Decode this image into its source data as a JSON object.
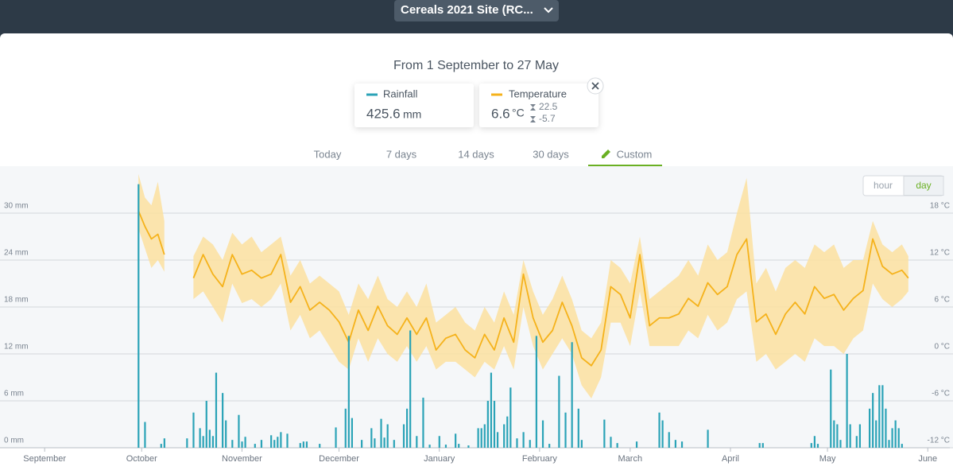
{
  "header": {
    "site": "Cereals 2021 Site (RC..."
  },
  "range_title": "From 1 September to 27 May",
  "summary": {
    "rainfall": {
      "value": 425.6,
      "unit": "mm"
    },
    "temperature": {
      "value": 6.6,
      "unit": "°C",
      "max": 22.5,
      "min": -5.7
    }
  },
  "tabs": [
    "Today",
    "7 days",
    "14 days",
    "30 days",
    "Custom"
  ],
  "active_tab": 4,
  "resolutions": [
    "hour",
    "day"
  ],
  "active_resolution": 1,
  "chart_data": {
    "type": "bar-line",
    "xlim": [
      -13.8,
      280.8
    ],
    "xticks": [
      {
        "value": 0,
        "label": "September"
      },
      {
        "value": 30,
        "label": "October"
      },
      {
        "value": 61,
        "label": "November"
      },
      {
        "value": 91,
        "label": "December"
      },
      {
        "value": 122,
        "label": "January"
      },
      {
        "value": 153,
        "label": "February"
      },
      {
        "value": 181,
        "label": "March"
      },
      {
        "value": 212,
        "label": "April"
      },
      {
        "value": 242,
        "label": "May"
      },
      {
        "value": 273,
        "label": "June"
      }
    ],
    "ylim": [
      0,
      36
    ],
    "yticks": [
      {
        "value": 0,
        "label": "0 mm"
      },
      {
        "value": 6,
        "label": "6 mm"
      },
      {
        "value": 12,
        "label": "12 mm"
      },
      {
        "value": 18,
        "label": "18 mm"
      },
      {
        "value": 24,
        "label": "24 mm"
      },
      {
        "value": 30,
        "label": "30 mm"
      }
    ],
    "y2lim": [
      -12,
      24
    ],
    "y2ticks": [
      {
        "value": -12,
        "label": "-12 °C"
      },
      {
        "value": -6,
        "label": "-6 °C"
      },
      {
        "value": 0,
        "label": "0 °C"
      },
      {
        "value": 6,
        "label": "6 °C"
      },
      {
        "value": 12,
        "label": "12 °C"
      },
      {
        "value": 18,
        "label": "18 °C"
      }
    ],
    "grid": true,
    "series": [
      {
        "name": "Rainfall",
        "color": "#2ba3b7",
        "type": "bar",
        "x": [
          29,
          31,
          36,
          37,
          44,
          46,
          48,
          49,
          50,
          51,
          52,
          53,
          55,
          56,
          58,
          60,
          61,
          62,
          65,
          67,
          70,
          71,
          72,
          73,
          75,
          79,
          80,
          81,
          85,
          90,
          93,
          94,
          95,
          98,
          101,
          102,
          104,
          105,
          106,
          108,
          111,
          112,
          113,
          115,
          117,
          119,
          122,
          124,
          127,
          128,
          131,
          134,
          135,
          136,
          137,
          138,
          139,
          140,
          142,
          143,
          144,
          146,
          148,
          150,
          152,
          154,
          156,
          159,
          161,
          163,
          165,
          166,
          173,
          175,
          177,
          183,
          190,
          191,
          193,
          195,
          197,
          205,
          221,
          222,
          237,
          238,
          239,
          243,
          244,
          245,
          246,
          248,
          249,
          251,
          252,
          255,
          256,
          257,
          258,
          259,
          260,
          261,
          262,
          263,
          264,
          265
        ],
        "values": [
          33.7,
          3.3,
          0.5,
          1.2,
          1.2,
          4.5,
          2.5,
          1.5,
          6,
          2.3,
          1.5,
          9.6,
          7,
          3.5,
          1.0,
          4.2,
          0.8,
          1.4,
          0.5,
          1.0,
          1.6,
          1.0,
          1.4,
          2.0,
          1.8,
          0.6,
          0.8,
          0.8,
          0.5,
          2.6,
          5.0,
          14.3,
          3.8,
          1.0,
          2.5,
          1.2,
          3.7,
          1.3,
          3.0,
          1.0,
          3.0,
          5.0,
          15.0,
          1.5,
          6.4,
          0.4,
          1.5,
          0.4,
          1.8,
          0.5,
          0.3,
          2.5,
          2.5,
          3.0,
          6.0,
          9.6,
          6.0,
          2.0,
          3.0,
          4.0,
          7.7,
          1.2,
          2.0,
          1.0,
          14.3,
          3.5,
          0.5,
          9.2,
          4.5,
          13.5,
          5.0,
          1.0,
          3.6,
          1.4,
          0.6,
          0.8,
          4.5,
          3.5,
          2.0,
          1.0,
          0.8,
          2.3,
          0.6,
          0.6,
          0.6,
          1.5,
          0.5,
          10.0,
          3.5,
          3.0,
          1.0,
          12.0,
          3.0,
          1.5,
          3.0,
          5.0,
          7.0,
          3.5,
          8.0,
          8.0,
          5.0,
          1.0,
          2.5,
          3.5,
          2.5,
          0.5
        ]
      },
      {
        "name": "Temperature",
        "color": "#f5b21b",
        "band_color": "#fbe1a0",
        "type": "line",
        "axis": "y2",
        "x": [
          29,
          31,
          33,
          35,
          37,
          40,
          46,
          49,
          52,
          55,
          58,
          61,
          64,
          67,
          70,
          73,
          76,
          79,
          82,
          85,
          88,
          91,
          94,
          97,
          100,
          103,
          106,
          109,
          112,
          115,
          118,
          121,
          124,
          127,
          130,
          133,
          136,
          139,
          142,
          145,
          148,
          151,
          154,
          157,
          160,
          163,
          166,
          169,
          172,
          175,
          178,
          181,
          184,
          187,
          190,
          193,
          196,
          199,
          202,
          205,
          208,
          211,
          214,
          217,
          220,
          223,
          226,
          229,
          232,
          235,
          238,
          241,
          244,
          247,
          250,
          253,
          256,
          259,
          262,
          265,
          267
        ],
        "values": [
          18.3,
          16.3,
          14.7,
          15.3,
          12.7,
          null,
          9.7,
          12.7,
          10.2,
          8.6,
          12.7,
          10.2,
          10.7,
          9.7,
          10.2,
          12.7,
          6.6,
          8.6,
          5.6,
          6.6,
          5.6,
          4.1,
          1.5,
          5.6,
          3.0,
          6.1,
          3.6,
          2.5,
          4.6,
          2.5,
          4.6,
          0.5,
          2.0,
          2.5,
          0.5,
          -0.5,
          2.5,
          0.5,
          4.6,
          1.5,
          10.2,
          4.6,
          1.5,
          3.0,
          6.6,
          3.6,
          -0.5,
          -1.5,
          0.5,
          8.6,
          7.6,
          4.6,
          12.7,
          3.6,
          4.6,
          4.6,
          5.1,
          7.1,
          6.1,
          9.1,
          7.6,
          8.6,
          12.7,
          14.7,
          4.1,
          5.1,
          2.5,
          5.1,
          6.6,
          5.1,
          8.6,
          7.1,
          7.6,
          5.6,
          7.1,
          8.1,
          14.7,
          11.2,
          10.2,
          10.7,
          9.7
        ],
        "low": [
          16,
          13.5,
          11,
          12,
          10.5,
          null,
          7,
          8,
          6,
          4,
          9,
          6.5,
          7,
          6,
          7,
          9,
          3,
          5,
          2,
          3,
          1,
          -1,
          -2,
          2,
          -1,
          2,
          0,
          -1,
          1,
          -1,
          1,
          -2,
          -1,
          -1,
          -2,
          -3,
          -1,
          -2,
          1,
          -2,
          6,
          1,
          -2,
          0,
          2,
          0,
          -4,
          -5.7,
          -3,
          4,
          4,
          1,
          8,
          1,
          1,
          1,
          1,
          3,
          2,
          5,
          3,
          4,
          7,
          8,
          -1,
          0,
          -2,
          -1,
          0,
          -1,
          2,
          1,
          1,
          0,
          2,
          3,
          9,
          7,
          6,
          7,
          8
        ],
        "high": [
          23,
          20,
          19,
          22,
          17,
          null,
          12.5,
          15,
          14,
          12,
          15.5,
          14,
          15,
          13,
          14,
          15,
          10,
          12,
          9,
          10,
          9,
          8,
          5,
          9,
          7,
          10,
          7,
          6,
          8,
          6,
          9,
          4,
          5,
          6,
          4,
          3,
          6,
          4,
          8,
          5,
          12,
          8,
          5,
          7,
          10,
          7,
          3,
          2,
          4,
          12,
          11,
          9,
          15,
          7,
          8,
          9,
          10,
          12,
          10,
          14,
          12,
          13,
          18,
          22.5,
          9,
          11,
          8,
          11,
          12,
          11,
          14,
          13,
          14,
          11,
          12,
          12,
          17,
          14,
          13,
          14,
          12.5
        ]
      }
    ]
  }
}
